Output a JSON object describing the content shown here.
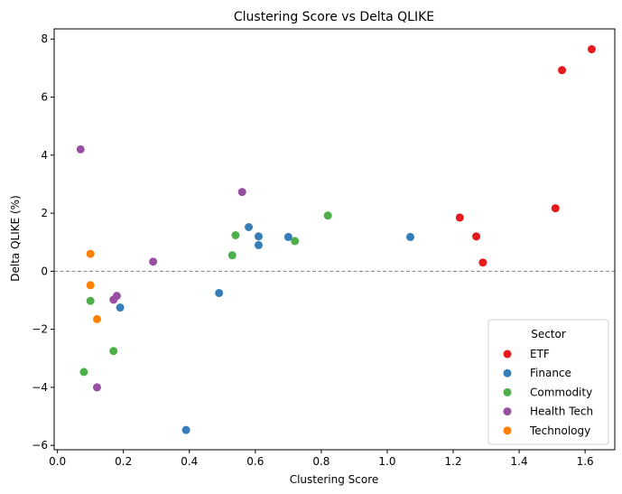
{
  "chart_data": {
    "type": "scatter",
    "title": "Clustering Score vs Delta QLIKE",
    "xlabel": "Clustering Score",
    "ylabel": "Delta QLIKE (%)",
    "xlim": [
      -0.01,
      1.69
    ],
    "ylim": [
      -6.15,
      8.35
    ],
    "xticks": [
      "0.0",
      "0.2",
      "0.4",
      "0.6",
      "0.8",
      "1.0",
      "1.2",
      "1.4",
      "1.6"
    ],
    "xtick_values": [
      0.0,
      0.2,
      0.4,
      0.6,
      0.8,
      1.0,
      1.2,
      1.4,
      1.6
    ],
    "yticks": [
      "−6",
      "−4",
      "−2",
      "0",
      "2",
      "4",
      "6",
      "8"
    ],
    "ytick_values": [
      -6,
      -4,
      -2,
      0,
      2,
      4,
      6,
      8
    ],
    "reference_line": {
      "y": 0,
      "style": "dashed",
      "color": "#808080"
    },
    "grid": false,
    "legend": {
      "title": "Sector",
      "placement": "lower-right"
    },
    "series": [
      {
        "name": "ETF",
        "color": "#e41a1c",
        "points": [
          {
            "x": 1.62,
            "y": 7.65
          },
          {
            "x": 1.53,
            "y": 6.93
          },
          {
            "x": 1.51,
            "y": 2.17
          },
          {
            "x": 1.22,
            "y": 1.85
          },
          {
            "x": 1.27,
            "y": 1.2
          },
          {
            "x": 1.29,
            "y": 0.3
          }
        ]
      },
      {
        "name": "Finance",
        "color": "#377eb8",
        "points": [
          {
            "x": 0.58,
            "y": 1.52
          },
          {
            "x": 0.61,
            "y": 1.2
          },
          {
            "x": 0.61,
            "y": 0.9
          },
          {
            "x": 0.7,
            "y": 1.18
          },
          {
            "x": 1.07,
            "y": 1.18
          },
          {
            "x": 0.49,
            "y": -0.75
          },
          {
            "x": 0.19,
            "y": -1.25
          },
          {
            "x": 0.39,
            "y": -5.47
          }
        ]
      },
      {
        "name": "Commodity",
        "color": "#4daf4a",
        "points": [
          {
            "x": 0.82,
            "y": 1.92
          },
          {
            "x": 0.54,
            "y": 1.24
          },
          {
            "x": 0.72,
            "y": 1.04
          },
          {
            "x": 0.53,
            "y": 0.55
          },
          {
            "x": 0.1,
            "y": -1.02
          },
          {
            "x": 0.17,
            "y": -2.75
          },
          {
            "x": 0.08,
            "y": -3.47
          }
        ]
      },
      {
        "name": "Health Tech",
        "color": "#984ea3",
        "points": [
          {
            "x": 0.07,
            "y": 4.2
          },
          {
            "x": 0.56,
            "y": 2.73
          },
          {
            "x": 0.29,
            "y": 0.33
          },
          {
            "x": 0.18,
            "y": -0.85
          },
          {
            "x": 0.17,
            "y": -0.98
          },
          {
            "x": 0.12,
            "y": -4.0
          }
        ]
      },
      {
        "name": "Technology",
        "color": "#ff7f00",
        "points": [
          {
            "x": 0.1,
            "y": 0.6
          },
          {
            "x": 0.1,
            "y": -0.48
          },
          {
            "x": 0.12,
            "y": -1.65
          }
        ]
      }
    ]
  }
}
